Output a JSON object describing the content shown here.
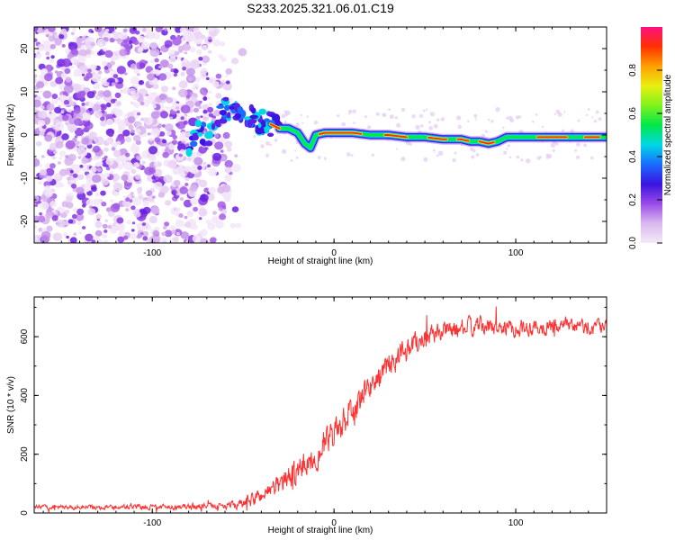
{
  "figure": {
    "title": "S233.2025.321.06.01.C19"
  },
  "chart_data": [
    {
      "type": "heatmap",
      "name": "spectrogram",
      "xlabel": "Height of straight line (km)",
      "ylabel": "Frequency (Hz)",
      "xlim": [
        -165,
        150
      ],
      "ylim": [
        -25,
        25
      ],
      "xticks": [
        -100,
        0,
        100
      ],
      "xtick_labels": [
        "-100",
        "0",
        "100"
      ],
      "yticks": [
        -20,
        -10,
        0,
        10,
        20
      ],
      "ytick_labels": [
        "-20",
        "-10",
        "0",
        "10",
        "20"
      ],
      "noise_until_km": -55,
      "signal_track_km": [
        [
          -80,
          -3
        ],
        [
          -75,
          2
        ],
        [
          -70,
          -1
        ],
        [
          -65,
          4
        ],
        [
          -60,
          6
        ],
        [
          -55,
          5
        ],
        [
          -50,
          6
        ],
        [
          -45,
          4
        ],
        [
          -40,
          3
        ],
        [
          -35,
          2.5
        ],
        [
          -30,
          1.5
        ],
        [
          -25,
          1.5
        ],
        [
          -20,
          0.5
        ],
        [
          -16,
          -2
        ],
        [
          -13,
          -3
        ],
        [
          -10,
          0
        ],
        [
          -5,
          0.5
        ],
        [
          0,
          0.5
        ],
        [
          10,
          0.5
        ],
        [
          20,
          0
        ],
        [
          30,
          0
        ],
        [
          40,
          -0.5
        ],
        [
          50,
          -0.5
        ],
        [
          60,
          -1
        ],
        [
          70,
          -1
        ],
        [
          75,
          -1.5
        ],
        [
          80,
          -1.5
        ],
        [
          85,
          -2
        ],
        [
          90,
          -1.5
        ],
        [
          95,
          -0.5
        ],
        [
          100,
          -0.5
        ],
        [
          110,
          -0.5
        ],
        [
          120,
          -0.5
        ],
        [
          130,
          -0.5
        ],
        [
          140,
          -0.5
        ],
        [
          150,
          -0.5
        ]
      ],
      "colorbar": {
        "label": "Normalized spectral amplitude",
        "range": [
          0,
          1
        ],
        "ticks": [
          0.0,
          0.2,
          0.4,
          0.6,
          0.8
        ],
        "tick_labels": [
          "0.0",
          "0.2",
          "0.4",
          "0.6",
          "0.8"
        ],
        "colors": [
          "#f4eaf8",
          "#d9b8ee",
          "#9a4be8",
          "#3a14e0",
          "#1a6cff",
          "#00d8e6",
          "#00e84a",
          "#7ef21c",
          "#e8ee10",
          "#ffa000",
          "#ff3000",
          "#ff1080"
        ]
      }
    },
    {
      "type": "line",
      "name": "snr",
      "xlabel": "Height of straight line (km)",
      "ylabel": "SNR (10 * v/v)",
      "xlim": [
        -165,
        150
      ],
      "ylim": [
        0,
        735
      ],
      "xticks": [
        -100,
        0,
        100
      ],
      "xtick_labels": [
        "-100",
        "0",
        "100"
      ],
      "yticks": [
        0,
        200,
        400,
        600
      ],
      "ytick_labels": [
        "0",
        "200",
        "400",
        "600"
      ],
      "line_color": "#ff3030",
      "trend": {
        "x": [
          -165,
          -120,
          -80,
          -60,
          -50,
          -40,
          -30,
          -20,
          -10,
          0,
          10,
          20,
          30,
          40,
          50,
          60,
          70,
          80,
          100,
          120,
          150
        ],
        "y": [
          20,
          20,
          22,
          25,
          30,
          60,
          100,
          140,
          200,
          260,
          340,
          430,
          500,
          560,
          600,
          620,
          630,
          635,
          630,
          635,
          630
        ]
      },
      "noise_amplitude": {
        "x": [
          -165,
          -60,
          -40,
          -20,
          0,
          20,
          40,
          60,
          150
        ],
        "y": [
          10,
          15,
          40,
          70,
          80,
          70,
          60,
          45,
          40
        ]
      }
    }
  ]
}
